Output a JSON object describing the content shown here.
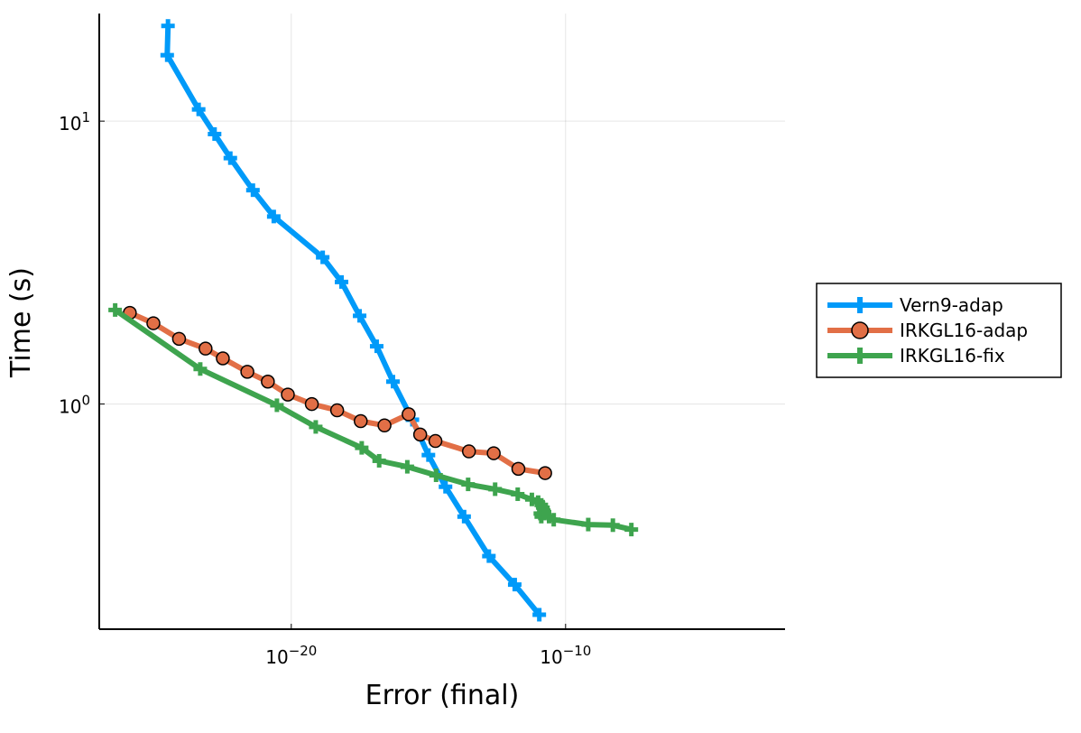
{
  "chart_data": {
    "type": "line",
    "xlabel": "Error (final)",
    "ylabel": "Time (s)",
    "xscale": "log10",
    "yscale": "log10",
    "xlim": [
      1e-27,
      0.01
    ],
    "ylim": [
      0.16,
      24
    ],
    "xticks": [
      {
        "value": 1e-20,
        "base": "10",
        "exp": "−20"
      },
      {
        "value": 1e-10,
        "base": "10",
        "exp": "−10"
      }
    ],
    "yticks": [
      {
        "value": 1,
        "base": "10",
        "exp": "0"
      },
      {
        "value": 10,
        "base": "10",
        "exp": "1"
      }
    ],
    "grid": true,
    "legend_position": "outside-right",
    "series": [
      {
        "name": "Vern9-adap",
        "color": "#009af9",
        "marker": "cross",
        "points": [
          [
            3.2e-25,
            21.7
          ],
          [
            3e-25,
            17.1
          ],
          [
            4.2e-24,
            11.0
          ],
          [
            1.6e-23,
            9.0
          ],
          [
            6e-23,
            7.4
          ],
          [
            4e-22,
            5.7
          ],
          [
            2.3e-21,
            4.6
          ],
          [
            1.4e-19,
            3.3
          ],
          [
            6.8e-19,
            2.7
          ],
          [
            3.1e-18,
            2.05
          ],
          [
            1.3e-17,
            1.6
          ],
          [
            5.1e-17,
            1.2
          ],
          [
            2.6e-16,
            0.88
          ],
          [
            1e-15,
            0.66
          ],
          [
            4.2e-15,
            0.51
          ],
          [
            2e-14,
            0.4
          ],
          [
            1.6e-13,
            0.29
          ],
          [
            1.4e-12,
            0.23
          ],
          [
            1.1e-11,
            0.18
          ]
        ]
      },
      {
        "name": "IRKGL16-adap",
        "color": "#e26f46",
        "marker": "circle",
        "points": [
          [
            1.3e-26,
            2.1
          ],
          [
            9.4e-26,
            1.93
          ],
          [
            8.1e-25,
            1.7
          ],
          [
            7.5e-24,
            1.57
          ],
          [
            3.2e-23,
            1.45
          ],
          [
            2.5e-22,
            1.3
          ],
          [
            1.4e-21,
            1.2
          ],
          [
            7.5e-21,
            1.08
          ],
          [
            5.6e-20,
            1.0
          ],
          [
            4.7e-19,
            0.95
          ],
          [
            3.4e-18,
            0.87
          ],
          [
            2.5e-17,
            0.84
          ],
          [
            1.9e-16,
            0.92
          ],
          [
            5e-16,
            0.78
          ],
          [
            1.8e-15,
            0.74
          ],
          [
            3e-14,
            0.68
          ],
          [
            2.4e-13,
            0.67
          ],
          [
            1.9e-12,
            0.59
          ],
          [
            1.8e-11,
            0.57
          ]
        ]
      },
      {
        "name": "IRKGL16-fix",
        "color": "#3ea44e",
        "marker": "cross",
        "points": [
          [
            3.8e-27,
            2.15
          ],
          [
            4.8e-24,
            1.33
          ],
          [
            3e-21,
            0.99
          ],
          [
            7.8e-20,
            0.83
          ],
          [
            3.7e-18,
            0.7
          ],
          [
            1.6e-17,
            0.63
          ],
          [
            1.7e-16,
            0.6
          ],
          [
            1.9e-15,
            0.56
          ],
          [
            2.8e-14,
            0.52
          ],
          [
            2.7e-13,
            0.5
          ],
          [
            1.8e-12,
            0.48
          ],
          [
            5.9e-12,
            0.46
          ],
          [
            1e-11,
            0.45
          ],
          [
            1.3e-11,
            0.44
          ],
          [
            1.5e-11,
            0.43
          ],
          [
            1.6e-11,
            0.42
          ],
          [
            1.2e-11,
            0.41
          ],
          [
            1.3e-11,
            0.4
          ],
          [
            1.7e-11,
            0.41
          ],
          [
            2.5e-11,
            0.4
          ],
          [
            3.7e-11,
            0.39
          ],
          [
            6.7e-10,
            0.375
          ],
          [
            5.3e-09,
            0.373
          ],
          [
            2.5e-08,
            0.36
          ]
        ]
      }
    ]
  }
}
